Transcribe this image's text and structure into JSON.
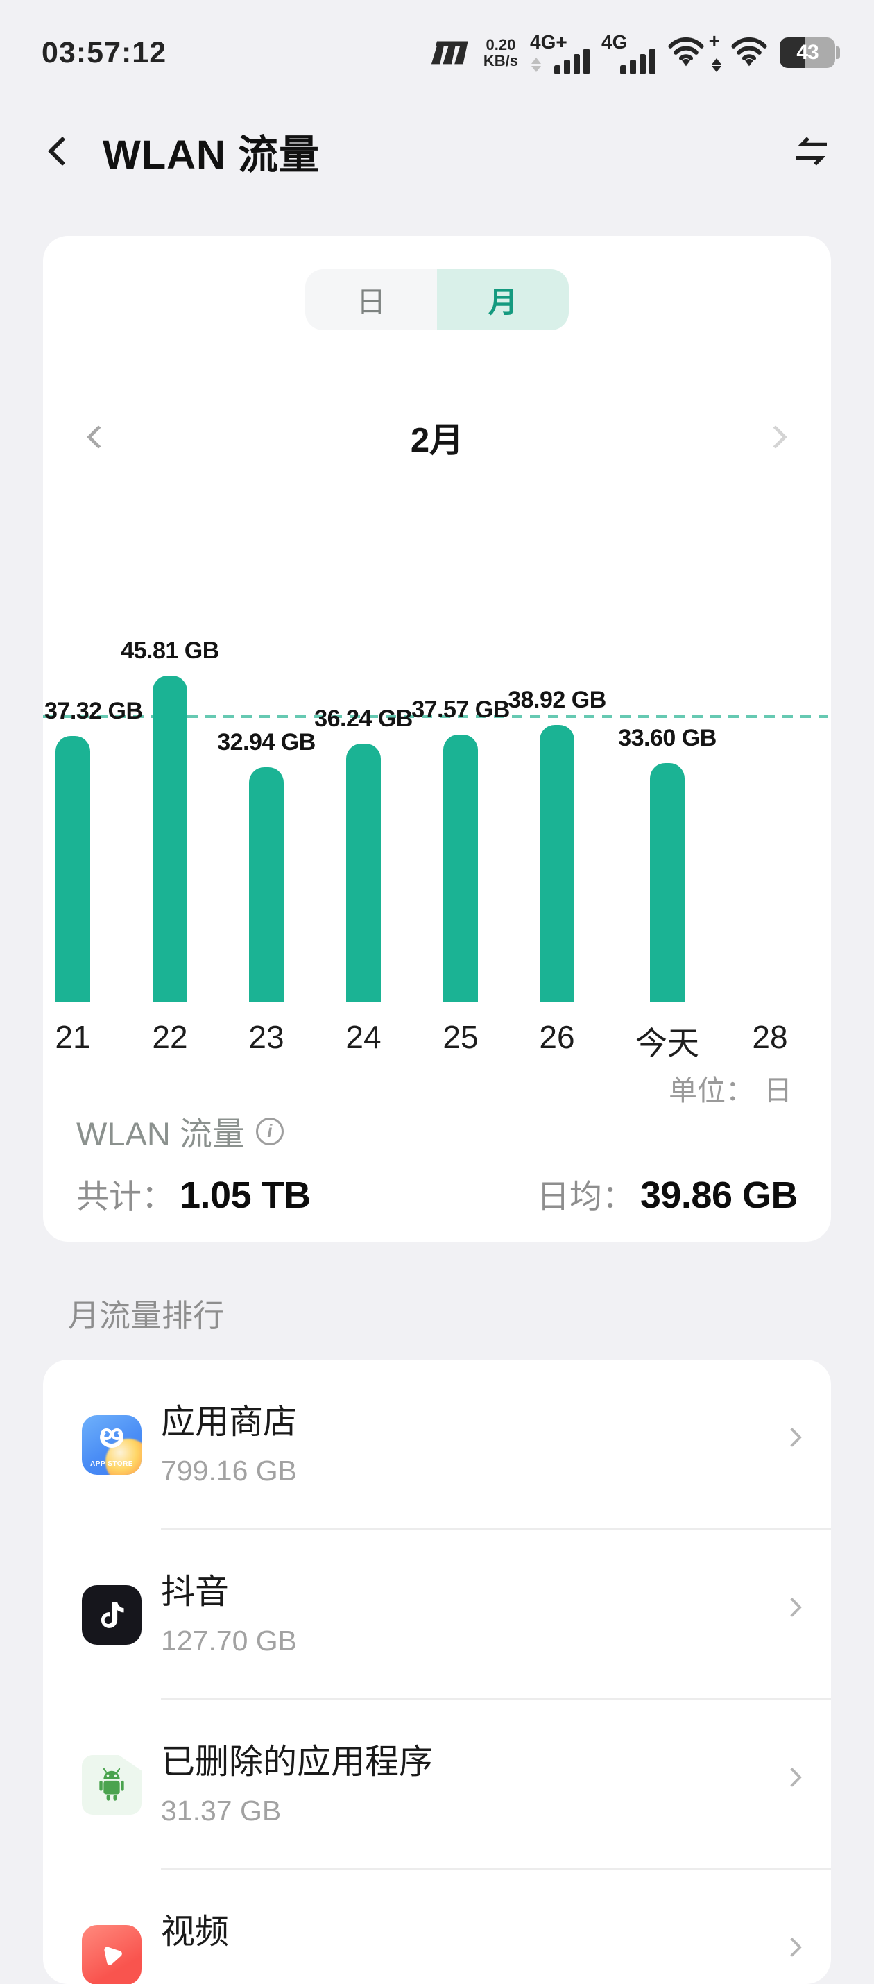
{
  "status_bar": {
    "time": "03:57:12",
    "speed_value": "0.20",
    "speed_unit": "KB/s",
    "sim1_network": "4G+",
    "sim2_network": "4G",
    "battery_percent": "43"
  },
  "header": {
    "title": "WLAN 流量"
  },
  "tabs": {
    "day": "日",
    "month": "月"
  },
  "month_nav": {
    "current": "2月"
  },
  "chart_data": {
    "type": "bar",
    "title": "WLAN 流量",
    "categories": [
      "21",
      "22",
      "23",
      "24",
      "25",
      "26",
      "今天",
      "28"
    ],
    "values": [
      37.32,
      45.81,
      32.94,
      36.24,
      37.57,
      38.92,
      33.6,
      null
    ],
    "value_labels": [
      "37.32 GB",
      "45.81 GB",
      "32.94 GB",
      "36.24 GB",
      "37.57 GB",
      "38.92 GB",
      "33.60 GB",
      null
    ],
    "average_value": 39.86,
    "average_line": true,
    "xlabel": "日",
    "ylabel": "GB",
    "ylim": [
      0,
      52
    ],
    "grid": false,
    "bar_color": "#1bb394",
    "average_line_color": "#66c9b2"
  },
  "summary": {
    "unit_label": "单位：",
    "unit_value": "日",
    "metric_label": "WLAN 流量",
    "info_icon_glyph": "i",
    "total_label": "共计：",
    "total_value": "1.05 TB",
    "avg_label": "日均：",
    "avg_value": "39.86 GB"
  },
  "ranking": {
    "section_title": "月流量排行",
    "items": [
      {
        "name": "应用商店",
        "size": "799.16 GB",
        "icon": "app-store",
        "icon_text": "APP STORE",
        "icon_color": "#4a8df5"
      },
      {
        "name": "抖音",
        "size": "127.70 GB",
        "icon": "douyin",
        "icon_color": "#16161c"
      },
      {
        "name": "已删除的应用程序",
        "size": "31.37 GB",
        "icon": "deleted-apps",
        "icon_color": "#4caf50"
      },
      {
        "name": "视频",
        "size": "",
        "icon": "video",
        "icon_color": "#f9544e"
      }
    ]
  }
}
